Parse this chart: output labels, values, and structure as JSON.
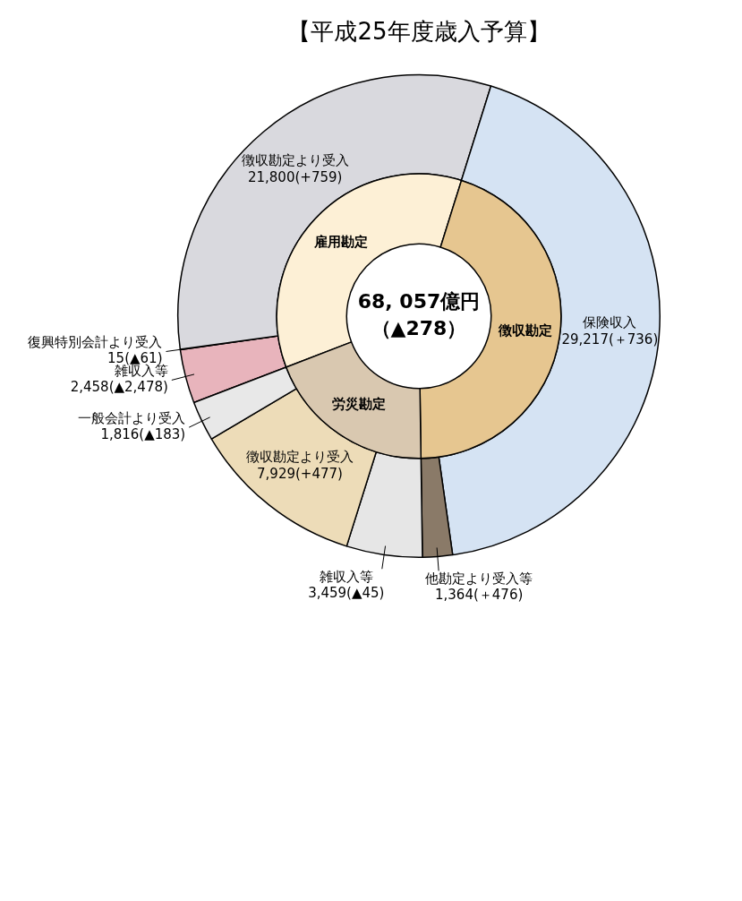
{
  "chart_data": [
    {
      "type": "donut",
      "title": "【平成25年度歳入予算】",
      "categories": [
        "雑収入等",
        "復興特別会計より受入",
        "徴収勘定より受入",
        "保険収入",
        "他勘定より受入等",
        "雑収入等",
        "徴収勘定より受入",
        "一般会計より受入"
      ],
      "values": [
        2458,
        15,
        21800,
        29217,
        1364,
        3459,
        7929,
        1816
      ],
      "value_labels": [
        "2,458(▲2,478)",
        "15(▲61)",
        "21,800(+759)",
        "29,217(＋736)",
        "1,364(＋476)",
        "3,459(▲45)",
        "7,929(+477)",
        "1,816(▲183)"
      ],
      "colors": [
        "#e8b4bc",
        "#c8c8cc",
        "#d9d9de",
        "#d5e3f3",
        "#8a7a68",
        "#e6e6e6",
        "#eddcb8",
        "#e8e8e8"
      ]
    },
    {
      "type": "donut",
      "annotations": [
        "68, 057億円",
        "（▲278）"
      ],
      "categories": [
        "雇用勘定",
        "徴収勘定",
        "労災勘定"
      ],
      "values": [
        35.67,
        44.93,
        19.4
      ],
      "colors": [
        "#fdf0d6",
        "#e6c690",
        "#d9c8b0"
      ]
    }
  ]
}
